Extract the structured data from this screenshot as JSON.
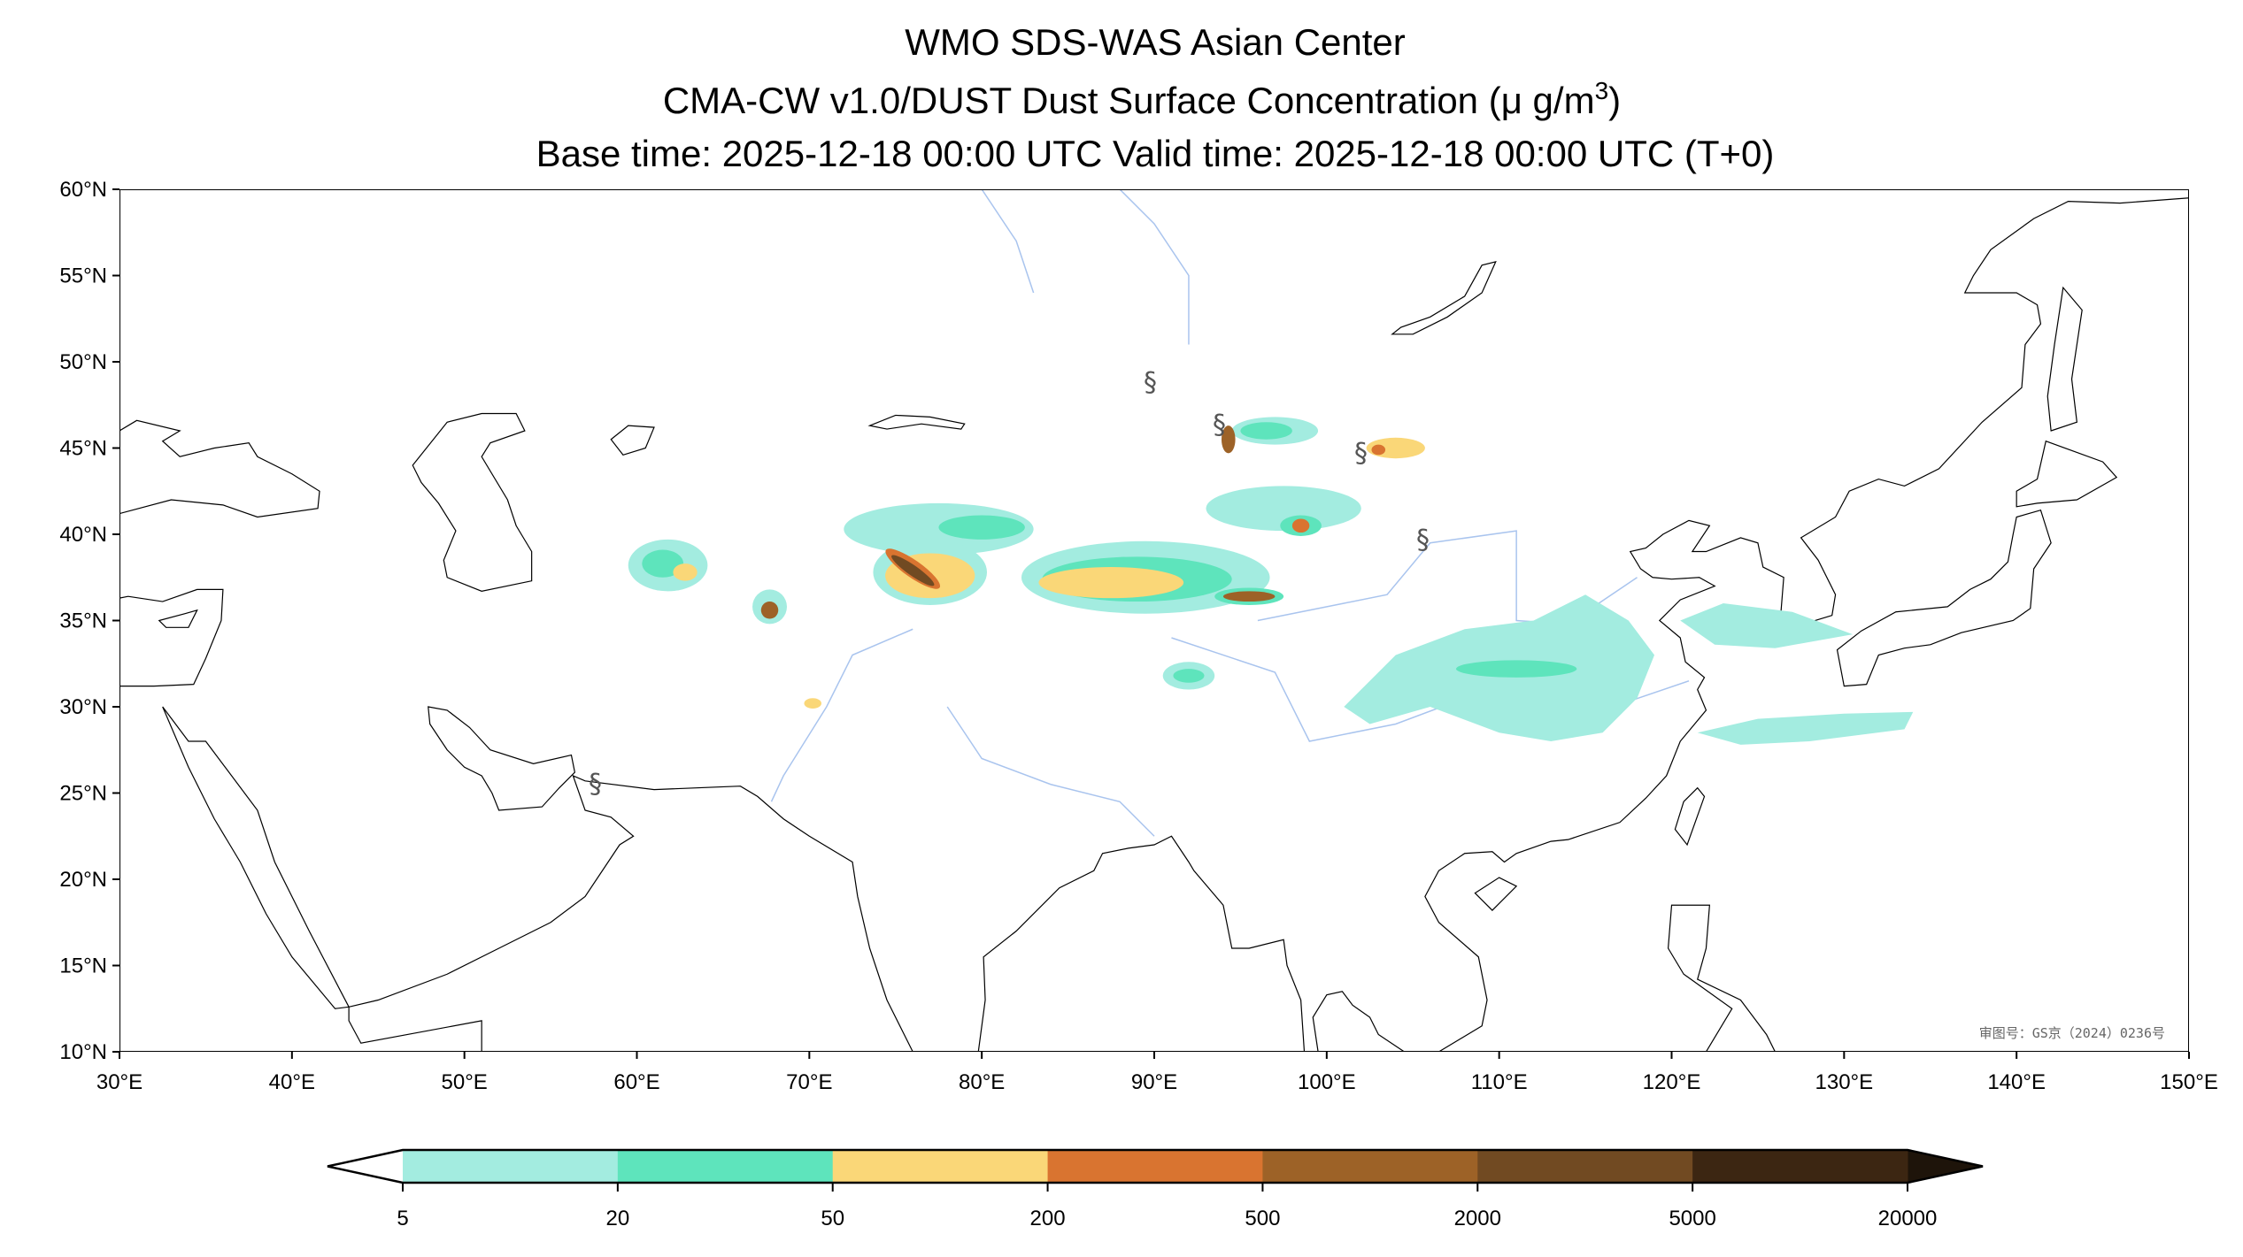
{
  "chart_data": {
    "type": "heatmap",
    "title_lines": [
      "WMO SDS-WAS Asian Center",
      "CMA-CW v1.0/DUST Dust Surface Concentration (μ g/m",
      "Base time: 2025-12-18 00:00 UTC Valid time: 2025-12-18 00:00 UTC (T+0)"
    ],
    "title_superscript": "3",
    "title_close": ")",
    "variable": "Dust Surface Concentration",
    "units": "μg/m3",
    "xlim": [
      30,
      150
    ],
    "ylim": [
      10,
      60
    ],
    "x_ticks": [
      30,
      40,
      50,
      60,
      70,
      80,
      90,
      100,
      110,
      120,
      130,
      140,
      150
    ],
    "x_tick_labels": [
      "30°E",
      "40°E",
      "50°E",
      "60°E",
      "70°E",
      "80°E",
      "90°E",
      "100°E",
      "110°E",
      "120°E",
      "130°E",
      "140°E",
      "150°E"
    ],
    "y_ticks": [
      10,
      15,
      20,
      25,
      30,
      35,
      40,
      45,
      50,
      55,
      60
    ],
    "y_tick_labels": [
      "10°N",
      "15°N",
      "20°N",
      "25°N",
      "30°N",
      "35°N",
      "40°N",
      "45°N",
      "50°N",
      "55°N",
      "60°N"
    ],
    "colorbar": {
      "levels": [
        5,
        20,
        50,
        200,
        500,
        2000,
        5000,
        20000
      ],
      "labels": [
        "5",
        "20",
        "50",
        "200",
        "500",
        "2000",
        "5000",
        "20000"
      ],
      "colors": [
        "#a3ece0",
        "#5ee4bc",
        "#fad778",
        "#d97430",
        "#9d6227",
        "#714a22",
        "#3c2612"
      ],
      "under_color": "#ffffff",
      "over_color": "#1e140a",
      "extend": "both",
      "placement": "bottom"
    },
    "watermark": "审图号：GS京（2024）0236号",
    "storm_marker": "§"
  }
}
